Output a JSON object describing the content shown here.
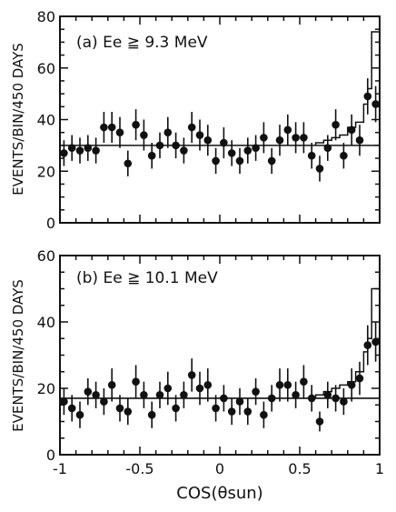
{
  "chart_data": [
    {
      "type": "scatter",
      "panel_label": "(a) Ee ≧ 9.3 MeV",
      "ylabel": "EVENTS/BIN/450 DAYS",
      "xlim": [
        -1,
        1
      ],
      "ylim": [
        0,
        80
      ],
      "y_ticks": [
        "0",
        "20",
        "40",
        "60",
        "80"
      ],
      "x_ticks": [],
      "series": [
        {
          "kind": "points_with_errorbars",
          "x": [
            -0.975,
            -0.925,
            -0.875,
            -0.825,
            -0.775,
            -0.725,
            -0.675,
            -0.625,
            -0.575,
            -0.525,
            -0.475,
            -0.425,
            -0.375,
            -0.325,
            -0.275,
            -0.225,
            -0.175,
            -0.125,
            -0.075,
            -0.025,
            0.025,
            0.075,
            0.125,
            0.175,
            0.225,
            0.275,
            0.325,
            0.375,
            0.425,
            0.475,
            0.525,
            0.575,
            0.625,
            0.675,
            0.725,
            0.775,
            0.825,
            0.875,
            0.925,
            0.975
          ],
          "y": [
            27,
            29,
            28,
            29,
            28,
            37,
            37,
            35,
            23,
            38,
            34,
            26,
            30,
            35,
            30,
            28,
            37,
            34,
            32,
            24,
            31,
            27,
            24,
            28,
            29,
            33,
            24,
            32,
            36,
            33,
            33,
            26,
            21,
            29,
            38,
            26,
            36,
            32,
            49,
            46
          ],
          "err": [
            5,
            5,
            5,
            5,
            5,
            6,
            6,
            6,
            5,
            6,
            6,
            5,
            5,
            6,
            5,
            5,
            6,
            6,
            6,
            5,
            6,
            5,
            5,
            5,
            5,
            6,
            5,
            6,
            6,
            6,
            6,
            5,
            5,
            5,
            6,
            5,
            6,
            6,
            7,
            7
          ]
        },
        {
          "kind": "flat_background",
          "y": 30
        },
        {
          "kind": "step_histogram",
          "edges": [
            0.6,
            0.65,
            0.7,
            0.75,
            0.8,
            0.85,
            0.9,
            0.925,
            0.95,
            0.975,
            1.0
          ],
          "values": [
            31,
            32,
            33,
            34,
            37,
            39,
            46,
            52,
            74,
            74
          ]
        }
      ]
    },
    {
      "type": "scatter",
      "panel_label": "(b) Ee ≧ 10.1 MeV",
      "ylabel": "EVENTS/BIN/450 DAYS",
      "xlim": [
        -1,
        1
      ],
      "ylim": [
        0,
        60
      ],
      "y_ticks": [
        "0",
        "20",
        "40",
        "60"
      ],
      "x_ticks": [
        "-1",
        "-0.5",
        "0",
        "0.5",
        "1"
      ],
      "xlabel": "COS(θsun)",
      "series": [
        {
          "kind": "points_with_errorbars",
          "x": [
            -0.975,
            -0.925,
            -0.875,
            -0.825,
            -0.775,
            -0.725,
            -0.675,
            -0.625,
            -0.575,
            -0.525,
            -0.475,
            -0.425,
            -0.375,
            -0.325,
            -0.275,
            -0.225,
            -0.175,
            -0.125,
            -0.075,
            -0.025,
            0.025,
            0.075,
            0.125,
            0.175,
            0.225,
            0.275,
            0.325,
            0.375,
            0.425,
            0.475,
            0.525,
            0.575,
            0.625,
            0.675,
            0.725,
            0.775,
            0.825,
            0.875,
            0.925,
            0.975
          ],
          "y": [
            16,
            14,
            12,
            19,
            18,
            16,
            21,
            14,
            13,
            22,
            18,
            12,
            18,
            20,
            14,
            18,
            24,
            20,
            21,
            14,
            17,
            13,
            16,
            13,
            19,
            12,
            17,
            21,
            21,
            18,
            22,
            17,
            10,
            18,
            17,
            16,
            21,
            23,
            33,
            34
          ],
          "err": [
            4,
            4,
            4,
            4,
            4,
            4,
            5,
            4,
            4,
            5,
            4,
            4,
            4,
            5,
            4,
            4,
            5,
            5,
            5,
            4,
            4,
            4,
            4,
            4,
            4,
            4,
            4,
            5,
            5,
            4,
            5,
            4,
            3,
            4,
            4,
            4,
            5,
            5,
            6,
            6
          ]
        },
        {
          "kind": "flat_background",
          "y": 17
        },
        {
          "kind": "step_histogram",
          "edges": [
            0.6,
            0.65,
            0.7,
            0.75,
            0.8,
            0.85,
            0.9,
            0.925,
            0.95,
            0.975,
            1.0
          ],
          "values": [
            18,
            19,
            20,
            21,
            22,
            25,
            31,
            35,
            50,
            50
          ]
        }
      ]
    }
  ]
}
